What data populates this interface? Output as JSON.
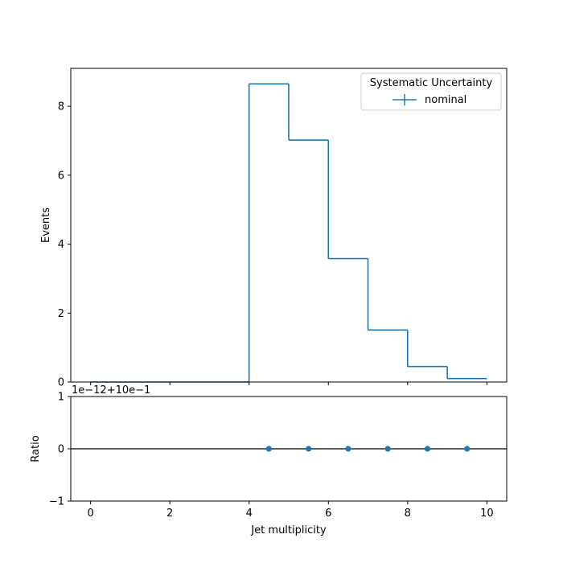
{
  "chart_data": [
    {
      "type": "histogram",
      "panel": "main",
      "xlim": [
        -0.5,
        10.5
      ],
      "ylim": [
        0,
        9.1
      ],
      "ylabel": "Events",
      "bin_edges": [
        0,
        1,
        2,
        3,
        4,
        5,
        6,
        7,
        8,
        9,
        10
      ],
      "series": [
        {
          "name": "nominal",
          "color": "#1f77b4",
          "values": [
            0,
            0,
            0,
            0,
            8.65,
            7.02,
            3.58,
            1.51,
            0.45,
            0.1
          ]
        }
      ],
      "yticks": [
        0,
        2,
        4,
        6,
        8
      ],
      "ytick_labels": [
        "0",
        "2",
        "4",
        "6",
        "8"
      ],
      "xticks": [
        0,
        2,
        4,
        6,
        8,
        10
      ],
      "legend": {
        "title": "Systematic Uncertainty",
        "entries": [
          "nominal"
        ],
        "location": "upper right"
      }
    },
    {
      "type": "scatter",
      "panel": "ratio",
      "xlim": [
        -0.5,
        10.5
      ],
      "ylim": [
        -1,
        1
      ],
      "xlabel": "Jet multiplicity",
      "ylabel": "Ratio",
      "offset_label": "1e−12+10e−1",
      "x": [
        4.5,
        5.5,
        6.5,
        7.5,
        8.5,
        9.5
      ],
      "y": [
        0,
        0,
        0,
        0,
        0,
        0
      ],
      "reference_line": 0,
      "yticks": [
        -1,
        0,
        1
      ],
      "ytick_labels": [
        "−1",
        "0",
        "1"
      ],
      "xticks": [
        0,
        2,
        4,
        6,
        8,
        10
      ],
      "xtick_labels": [
        "0",
        "2",
        "4",
        "6",
        "8",
        "10"
      ],
      "color": "#1f77b4"
    }
  ]
}
